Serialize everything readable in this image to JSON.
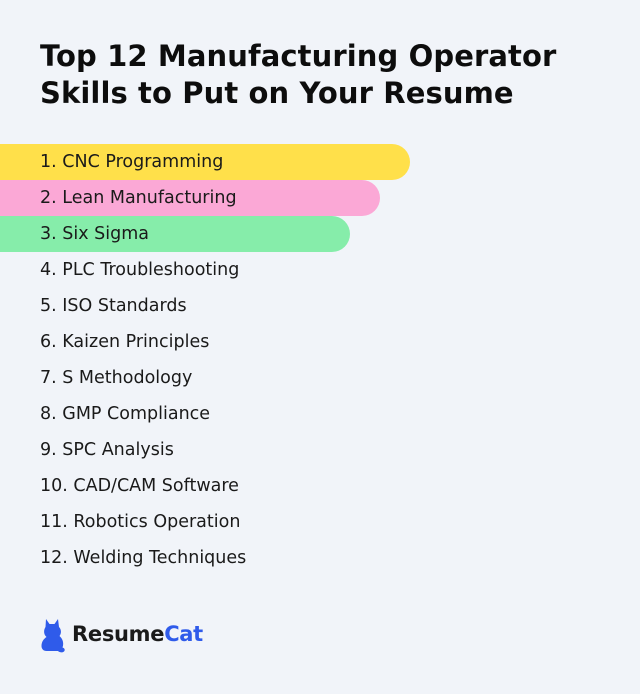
{
  "header": {
    "title_line1": "Top 12 Manufacturing Operator",
    "title_line2": "Skills to Put on Your Resume"
  },
  "skills": [
    {
      "label": "1. CNC Programming",
      "highlight": "#ffe04a"
    },
    {
      "label": "2. Lean Manufacturing",
      "highlight": "#fba8d6"
    },
    {
      "label": "3. Six Sigma",
      "highlight": "#86edaa"
    },
    {
      "label": "4. PLC Troubleshooting"
    },
    {
      "label": "5. ISO Standards"
    },
    {
      "label": "6. Kaizen Principles"
    },
    {
      "label": "7. S Methodology"
    },
    {
      "label": "8. GMP Compliance"
    },
    {
      "label": "9. SPC Analysis"
    },
    {
      "label": "10. CAD/CAM Software"
    },
    {
      "label": "11. Robotics Operation"
    },
    {
      "label": "12. Welding Techniques"
    }
  ],
  "brand": {
    "name_part1": "Resume",
    "name_part2": "Cat",
    "accent_color": "#2f5bea",
    "icon": "cat-icon"
  }
}
